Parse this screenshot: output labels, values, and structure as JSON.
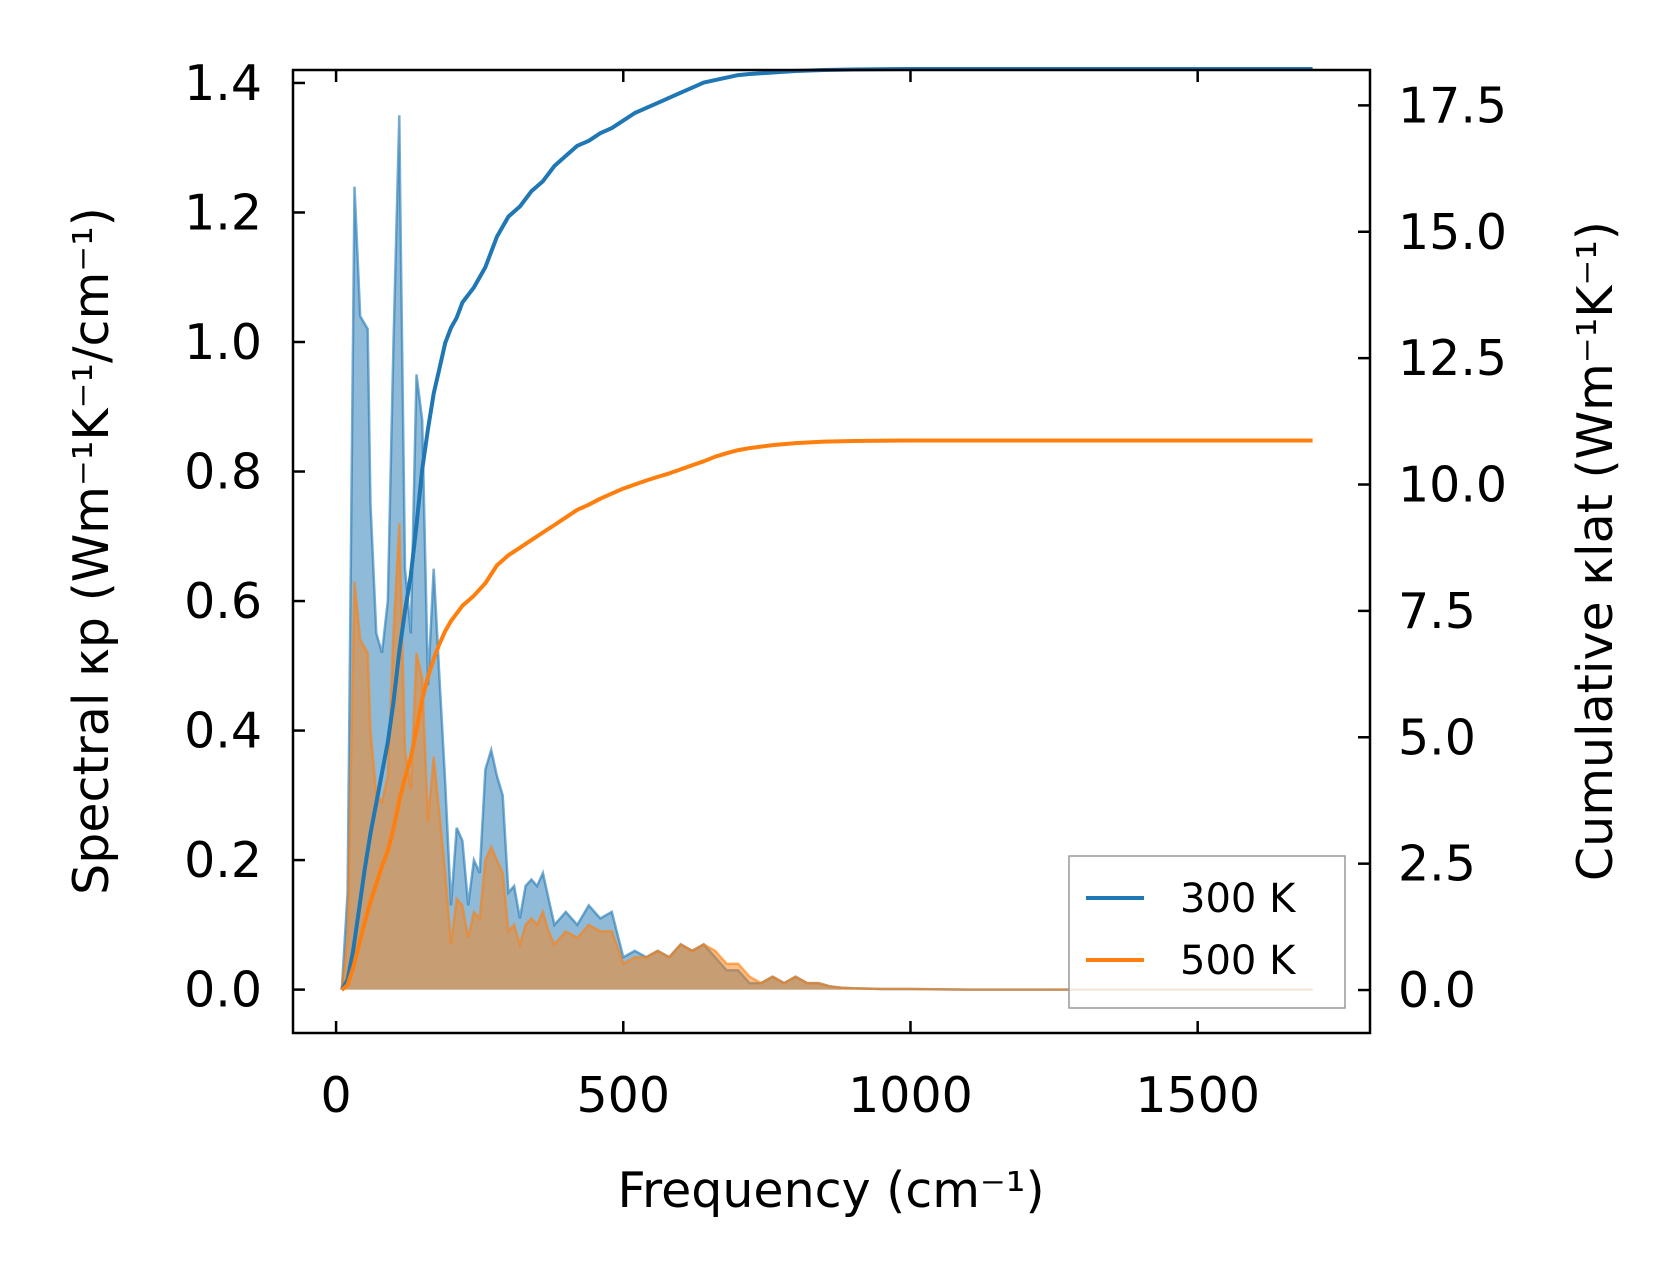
{
  "chart_data": {
    "type": "line",
    "xlabel": "Frequency (cm⁻¹)",
    "ylabel_left": "Spectral κp (Wm⁻¹K⁻¹/cm⁻¹)",
    "ylabel_right": "Cumulative κlat (Wm⁻¹K⁻¹)",
    "xlim": [
      -75,
      1800
    ],
    "ylim_left": [
      -0.067,
      1.42
    ],
    "ylim_right": [
      -0.85,
      18.2
    ],
    "x_ticks": [
      0,
      500,
      1000,
      1500
    ],
    "y_left_ticks": [
      0.0,
      0.2,
      0.4,
      0.6,
      0.8,
      1.0,
      1.2,
      1.4
    ],
    "y_right_ticks": [
      0.0,
      2.5,
      5.0,
      7.5,
      10.0,
      12.5,
      15.0,
      17.5
    ],
    "colors": {
      "300 K": "#1f77b4",
      "500 K": "#ff7f0e"
    },
    "legend": {
      "position": "lower-right",
      "entries": [
        "300 K",
        "500 K"
      ]
    },
    "spectral": [
      {
        "name": "300 K",
        "x": [
          10,
          20,
          32,
          42,
          55,
          60,
          70,
          80,
          90,
          100,
          110,
          112,
          120,
          130,
          140,
          150,
          160,
          170,
          180,
          190,
          200,
          210,
          220,
          230,
          240,
          250,
          260,
          270,
          280,
          290,
          300,
          310,
          320,
          330,
          340,
          350,
          360,
          370,
          380,
          390,
          400,
          420,
          440,
          460,
          480,
          500,
          520,
          540,
          560,
          580,
          600,
          620,
          640,
          660,
          680,
          700,
          720,
          740,
          760,
          780,
          800,
          820,
          840,
          860,
          880,
          900,
          950,
          1000,
          1100,
          1200,
          1300,
          1400,
          1500,
          1600,
          1700
        ],
        "values": [
          0.0,
          0.15,
          1.24,
          1.04,
          1.02,
          0.75,
          0.55,
          0.52,
          0.6,
          1.0,
          1.35,
          1.2,
          0.65,
          0.55,
          0.95,
          0.88,
          0.47,
          0.65,
          0.48,
          0.32,
          0.13,
          0.25,
          0.23,
          0.13,
          0.2,
          0.18,
          0.34,
          0.37,
          0.33,
          0.3,
          0.15,
          0.16,
          0.11,
          0.16,
          0.17,
          0.16,
          0.18,
          0.14,
          0.1,
          0.11,
          0.12,
          0.1,
          0.13,
          0.11,
          0.12,
          0.05,
          0.06,
          0.05,
          0.06,
          0.05,
          0.07,
          0.06,
          0.07,
          0.05,
          0.03,
          0.03,
          0.01,
          0.01,
          0.02,
          0.01,
          0.02,
          0.01,
          0.01,
          0.005,
          0.003,
          0.002,
          0.001,
          0.001,
          0.0,
          0.0,
          0.0,
          0.0,
          0.0,
          0.0,
          0.0
        ]
      },
      {
        "name": "500 K",
        "x": [
          10,
          20,
          32,
          42,
          55,
          60,
          70,
          80,
          90,
          100,
          110,
          112,
          120,
          130,
          140,
          150,
          160,
          170,
          180,
          190,
          200,
          210,
          220,
          230,
          240,
          250,
          260,
          270,
          280,
          290,
          300,
          310,
          320,
          330,
          340,
          350,
          360,
          370,
          380,
          390,
          400,
          420,
          440,
          460,
          480,
          500,
          520,
          540,
          560,
          580,
          600,
          620,
          640,
          660,
          680,
          700,
          720,
          740,
          760,
          780,
          800,
          820,
          840,
          860,
          880,
          900,
          950,
          1000,
          1100,
          1200,
          1300,
          1400,
          1500,
          1600,
          1700
        ],
        "values": [
          0.0,
          0.08,
          0.63,
          0.54,
          0.52,
          0.4,
          0.3,
          0.29,
          0.33,
          0.55,
          0.72,
          0.65,
          0.37,
          0.31,
          0.52,
          0.48,
          0.26,
          0.36,
          0.27,
          0.18,
          0.07,
          0.14,
          0.13,
          0.08,
          0.12,
          0.11,
          0.2,
          0.22,
          0.2,
          0.18,
          0.09,
          0.1,
          0.07,
          0.1,
          0.11,
          0.1,
          0.12,
          0.09,
          0.07,
          0.08,
          0.09,
          0.08,
          0.1,
          0.09,
          0.09,
          0.04,
          0.05,
          0.05,
          0.06,
          0.05,
          0.07,
          0.06,
          0.07,
          0.06,
          0.04,
          0.04,
          0.02,
          0.01,
          0.02,
          0.01,
          0.02,
          0.01,
          0.01,
          0.005,
          0.003,
          0.002,
          0.001,
          0.001,
          0.0,
          0.0,
          0.0,
          0.0,
          0.0,
          0.0,
          0.0
        ]
      }
    ],
    "cumulative": [
      {
        "name": "300 K",
        "x": [
          10,
          20,
          30,
          40,
          50,
          60,
          70,
          80,
          90,
          100,
          110,
          120,
          130,
          140,
          150,
          160,
          170,
          180,
          190,
          200,
          210,
          220,
          240,
          260,
          280,
          300,
          320,
          340,
          360,
          380,
          400,
          420,
          440,
          460,
          480,
          500,
          520,
          540,
          560,
          580,
          600,
          620,
          640,
          660,
          680,
          700,
          720,
          760,
          800,
          850,
          900,
          1000,
          1100,
          1200,
          1300,
          1400,
          1500,
          1600,
          1700
        ],
        "values": [
          0.0,
          0.2,
          0.8,
          1.6,
          2.4,
          3.1,
          3.7,
          4.3,
          4.9,
          5.7,
          6.7,
          7.5,
          8.2,
          9.2,
          10.3,
          11.1,
          11.8,
          12.3,
          12.8,
          13.1,
          13.3,
          13.6,
          13.9,
          14.3,
          14.9,
          15.3,
          15.5,
          15.8,
          16.0,
          16.3,
          16.5,
          16.7,
          16.8,
          16.95,
          17.05,
          17.2,
          17.35,
          17.45,
          17.55,
          17.65,
          17.75,
          17.85,
          17.95,
          18.0,
          18.05,
          18.1,
          18.12,
          18.15,
          18.18,
          18.2,
          18.21,
          18.22,
          18.22,
          18.22,
          18.22,
          18.22,
          18.22,
          18.22,
          18.22
        ]
      },
      {
        "name": "500 K",
        "x": [
          10,
          20,
          30,
          40,
          50,
          60,
          70,
          80,
          90,
          100,
          110,
          120,
          130,
          140,
          150,
          160,
          170,
          180,
          190,
          200,
          210,
          220,
          240,
          260,
          280,
          300,
          320,
          340,
          360,
          380,
          400,
          420,
          440,
          460,
          480,
          500,
          520,
          540,
          560,
          580,
          600,
          620,
          640,
          660,
          680,
          700,
          720,
          760,
          800,
          850,
          900,
          1000,
          1100,
          1200,
          1300,
          1400,
          1500,
          1600,
          1700
        ],
        "values": [
          0.0,
          0.1,
          0.45,
          0.9,
          1.35,
          1.75,
          2.1,
          2.45,
          2.75,
          3.2,
          3.75,
          4.2,
          4.6,
          5.15,
          5.75,
          6.2,
          6.55,
          6.85,
          7.1,
          7.3,
          7.45,
          7.6,
          7.8,
          8.05,
          8.4,
          8.6,
          8.75,
          8.9,
          9.05,
          9.2,
          9.35,
          9.5,
          9.6,
          9.72,
          9.82,
          9.92,
          10.0,
          10.08,
          10.15,
          10.22,
          10.3,
          10.38,
          10.46,
          10.55,
          10.62,
          10.68,
          10.72,
          10.78,
          10.82,
          10.85,
          10.86,
          10.87,
          10.87,
          10.87,
          10.87,
          10.87,
          10.87,
          10.87,
          10.87
        ]
      }
    ]
  }
}
